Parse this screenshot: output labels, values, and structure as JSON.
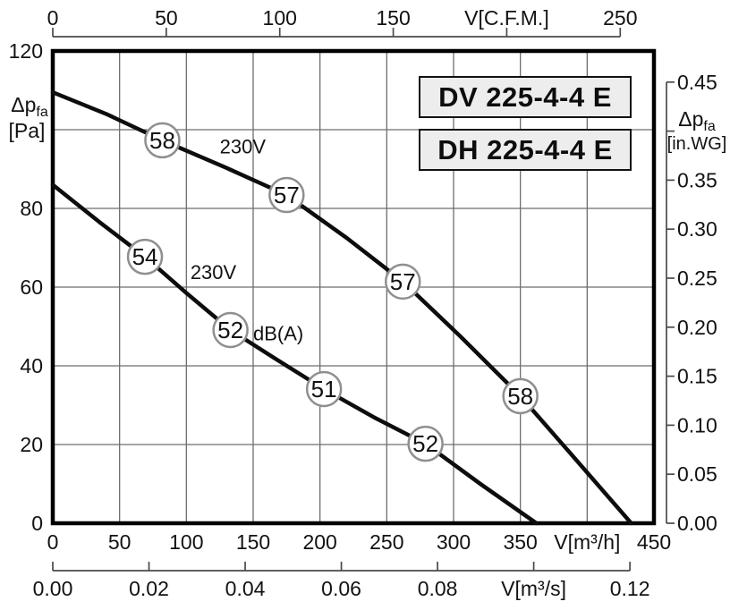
{
  "window": {
    "background": "#ffffff"
  },
  "model_labels": {
    "dv": "DV 225-4-4 E",
    "dh": "DH 225-4-4 E"
  },
  "colors": {
    "curve": "#0d0d0d",
    "grid": "#6e6e6e",
    "frame": "#000000",
    "axis": "#4a4a4a",
    "text": "#121212",
    "marker_stroke": "#8f8f8f",
    "marker_fill": "#ffffff",
    "box_fill": "#ededed",
    "box_border": "#111111"
  },
  "chart_data": {
    "type": "line",
    "x_axis_bottom_m3h": {
      "unit": "V[m³/h]",
      "min": 0,
      "max": 450,
      "ticks": [
        {
          "v": 0,
          "label": "0"
        },
        {
          "v": 50,
          "label": "50"
        },
        {
          "v": 100,
          "label": "100"
        },
        {
          "v": 150,
          "label": "150"
        },
        {
          "v": 200,
          "label": "200"
        },
        {
          "v": 250,
          "label": "250"
        },
        {
          "v": 300,
          "label": "300"
        },
        {
          "v": 350,
          "label": "350"
        },
        {
          "v": 400,
          "label": "V[m³/h]",
          "is_unit": true
        },
        {
          "v": 450,
          "label": "450"
        }
      ]
    },
    "x_axis_bottom_m3s": {
      "unit": "V[m³/s]",
      "min": 0,
      "max": 0.12,
      "ticks": [
        {
          "v": 0.0,
          "label": "0.00"
        },
        {
          "v": 0.02,
          "label": "0.02"
        },
        {
          "v": 0.04,
          "label": "0.04"
        },
        {
          "v": 0.06,
          "label": "0.06"
        },
        {
          "v": 0.08,
          "label": "0.08"
        },
        {
          "v": 0.1,
          "label": "V[m³/s]",
          "is_unit": true
        },
        {
          "v": 0.12,
          "label": "0.12"
        }
      ]
    },
    "x_axis_top_cfm": {
      "unit": "V[C.F.M.]",
      "min": 0,
      "max": 250,
      "ticks": [
        {
          "v": 0,
          "label": "0"
        },
        {
          "v": 50,
          "label": "50"
        },
        {
          "v": 100,
          "label": "100"
        },
        {
          "v": 150,
          "label": "150"
        },
        {
          "v": 200,
          "label": "V[C.F.M.]",
          "is_unit": true
        },
        {
          "v": 250,
          "label": "250"
        }
      ]
    },
    "y_axis_left_pa": {
      "label_main": "Δp",
      "label_sub": "fa",
      "label_unit": "[Pa]",
      "min": 0,
      "max": 120,
      "ticks": [
        {
          "v": 0,
          "label": "0"
        },
        {
          "v": 20,
          "label": "20"
        },
        {
          "v": 40,
          "label": "40"
        },
        {
          "v": 60,
          "label": "60"
        },
        {
          "v": 80,
          "label": "80"
        },
        {
          "v": 100,
          "label": null
        },
        {
          "v": 120,
          "label": "120"
        }
      ]
    },
    "y_axis_right_inwg": {
      "label_main": "Δp",
      "label_sub": "fa",
      "label_unit": "[in.WG]",
      "min": 0,
      "max": 0.45,
      "ticks": [
        {
          "v": 0.0,
          "label": "0.00"
        },
        {
          "v": 0.05,
          "label": "0.05"
        },
        {
          "v": 0.1,
          "label": "0.10"
        },
        {
          "v": 0.15,
          "label": "0.15"
        },
        {
          "v": 0.2,
          "label": "0.20"
        },
        {
          "v": 0.25,
          "label": "0.25"
        },
        {
          "v": 0.3,
          "label": "0.30"
        },
        {
          "v": 0.35,
          "label": "0.35"
        },
        {
          "v": 0.4,
          "label": null
        },
        {
          "v": 0.45,
          "label": "0.45"
        }
      ]
    },
    "grid": {
      "x_step_m3h": 50,
      "y_step_pa": 20
    },
    "series": [
      {
        "id": "pressure-curve-230v",
        "label": "230V",
        "label_pos": {
          "x": 125,
          "pa": 94
        },
        "points": [
          [
            0,
            109.5
          ],
          [
            40,
            104
          ],
          [
            82,
            97.3
          ],
          [
            130,
            90.3
          ],
          [
            175,
            83.4
          ],
          [
            220,
            72.5
          ],
          [
            262,
            61.4
          ],
          [
            305,
            47.5
          ],
          [
            350,
            32.3
          ],
          [
            392,
            16
          ],
          [
            433,
            0
          ]
        ],
        "markers": [
          {
            "value": "58",
            "x": 82,
            "pa": 97.3
          },
          {
            "value": "57",
            "x": 175,
            "pa": 83.4
          },
          {
            "value": "57",
            "x": 262,
            "pa": 61.4
          },
          {
            "value": "58",
            "x": 350,
            "pa": 32.3
          }
        ]
      },
      {
        "id": "sound-curve-dba",
        "label": "230V",
        "label_pos": {
          "x": 103,
          "pa": 62
        },
        "unit_label": "dB(A)",
        "unit_label_pos": {
          "x": 150,
          "pa": 46.5
        },
        "points": [
          [
            0,
            86
          ],
          [
            35,
            76.5
          ],
          [
            69,
            67.7
          ],
          [
            100,
            58.5
          ],
          [
            133,
            49.1
          ],
          [
            168,
            41.5
          ],
          [
            203,
            34.1
          ],
          [
            240,
            27
          ],
          [
            279,
            20.2
          ],
          [
            320,
            10
          ],
          [
            362,
            0
          ]
        ],
        "markers": [
          {
            "value": "54",
            "x": 69,
            "pa": 67.7
          },
          {
            "value": "52",
            "x": 133,
            "pa": 49.1
          },
          {
            "value": "51",
            "x": 203,
            "pa": 34.1
          },
          {
            "value": "52",
            "x": 279,
            "pa": 20.2
          }
        ]
      }
    ]
  }
}
